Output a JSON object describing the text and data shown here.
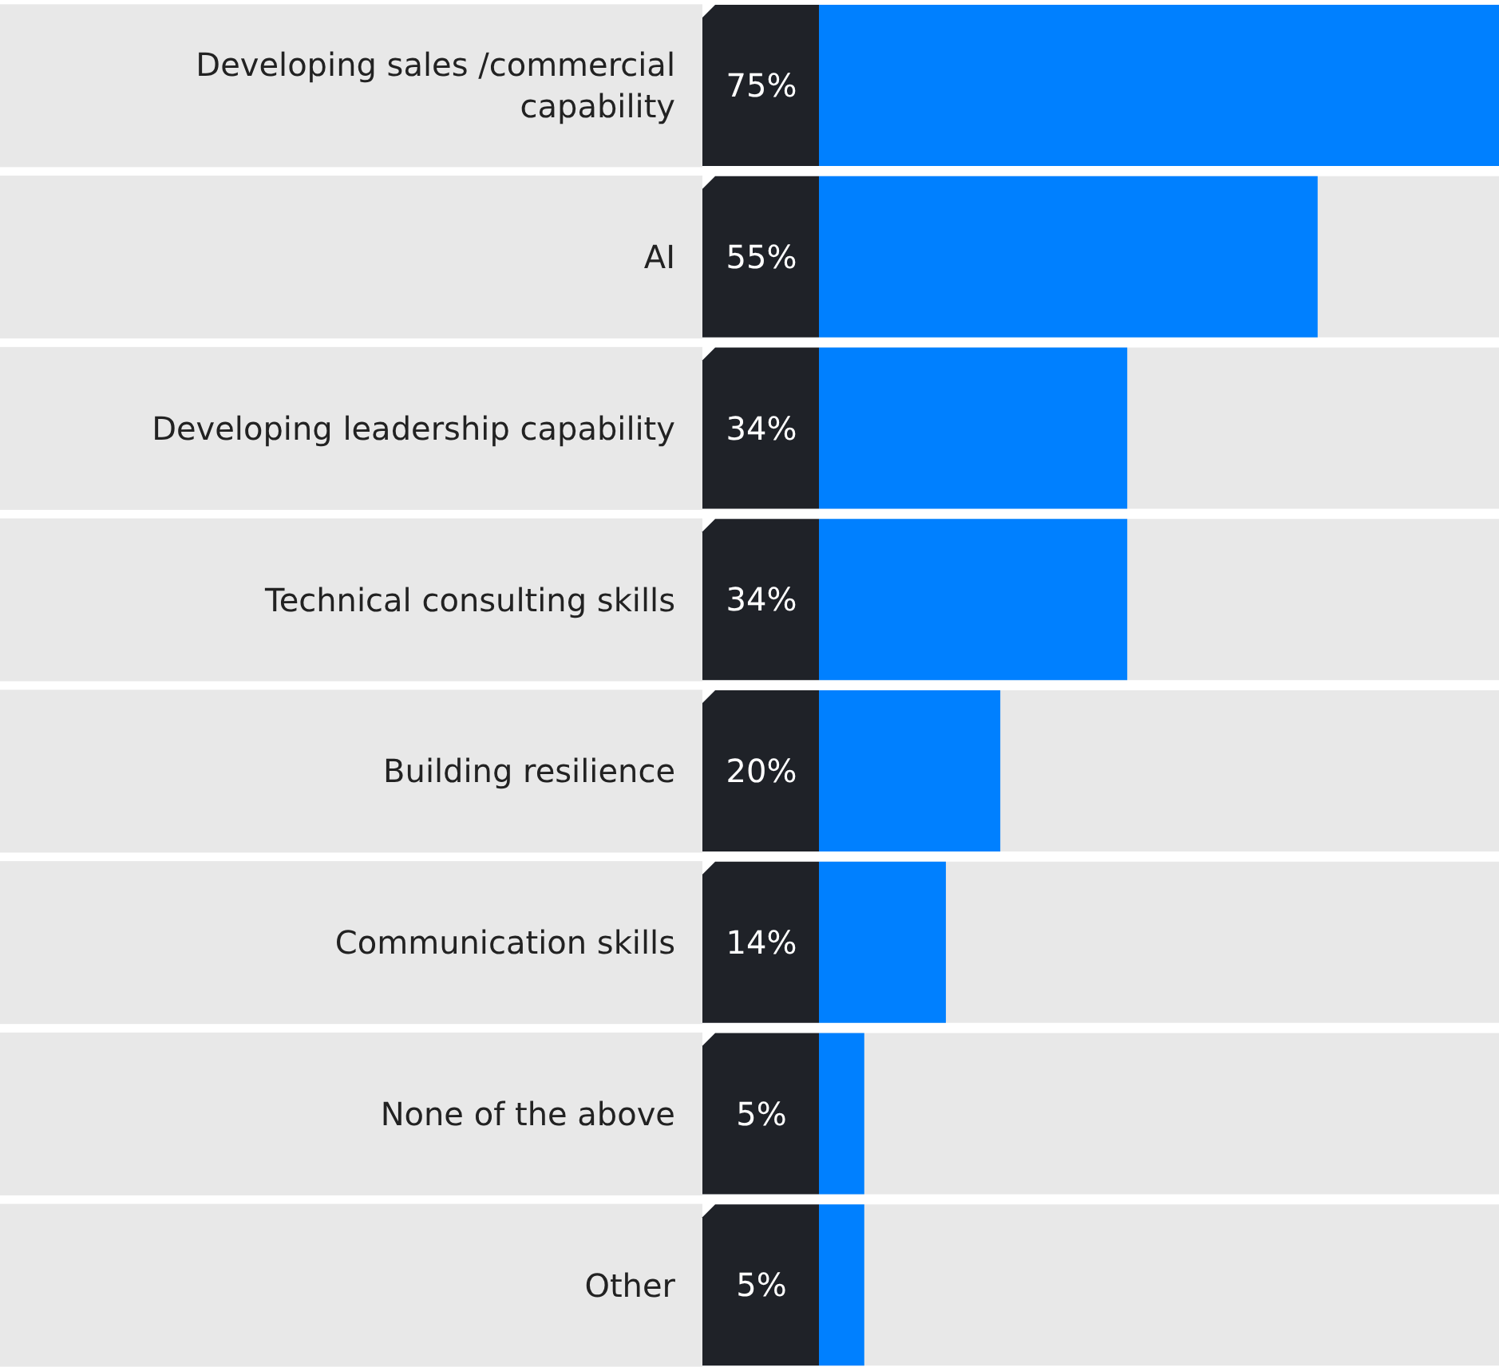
{
  "chart_data": {
    "type": "bar",
    "orientation": "horizontal",
    "categories": [
      "Developing sales /commercial capability",
      "AI",
      "Developing leadership capability",
      "Technical consulting skills",
      "Building resilience",
      "Communication skills",
      "None of the above",
      "Other"
    ],
    "values": [
      75,
      55,
      34,
      34,
      20,
      14,
      5,
      5
    ],
    "value_labels": [
      "75%",
      "55%",
      "34%",
      "34%",
      "20%",
      "14%",
      "5%",
      "5%"
    ],
    "color": "#0080ff",
    "xlim": [
      0,
      75
    ],
    "tick_labels": false,
    "grid": false,
    "legend": false
  }
}
